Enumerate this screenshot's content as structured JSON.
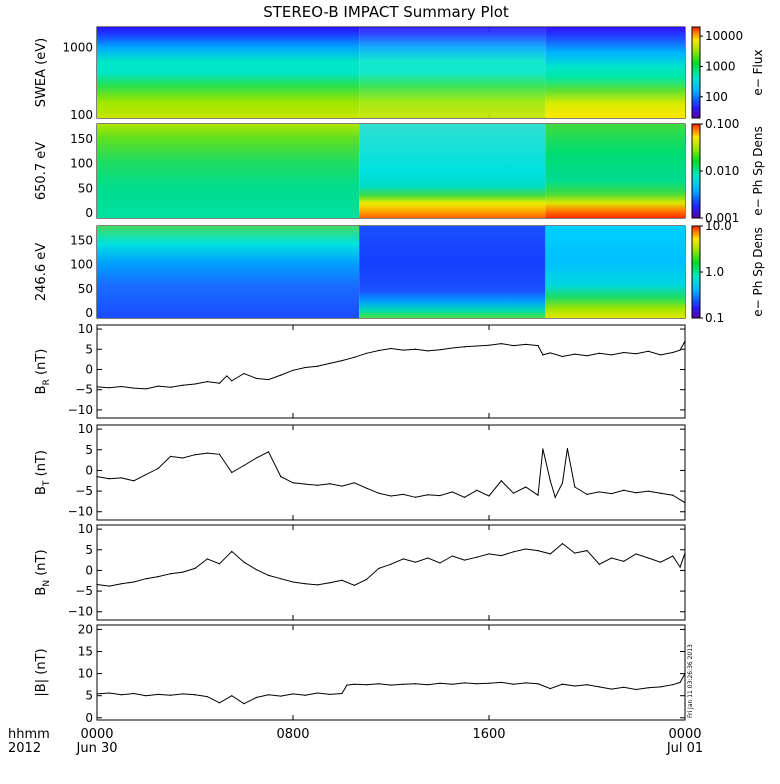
{
  "title": "STEREO-B IMPACT Summary Plot",
  "chart_data": [
    {
      "id": "swea",
      "type": "heatmap",
      "ylabel": "SWEA (eV)",
      "y_scale": "log",
      "ylim": [
        90,
        2000
      ],
      "yticks": [
        {
          "v": 1000,
          "label": "1000"
        },
        {
          "v": 100,
          "label": "100"
        }
      ],
      "colorbar_label": "e− Flux",
      "colorbar_scale": "log",
      "colorbar_range": [
        20,
        20000
      ],
      "colorbar_ticks": [
        {
          "v": 10000,
          "label": "10000"
        },
        {
          "v": 1000,
          "label": "1000"
        },
        {
          "v": 100,
          "label": "100"
        }
      ]
    },
    {
      "id": "pad650",
      "type": "heatmap",
      "ylabel": "650.7 eV",
      "ylim": [
        -10,
        180
      ],
      "yticks": [
        {
          "v": 150,
          "label": "150"
        },
        {
          "v": 100,
          "label": "100"
        },
        {
          "v": 50,
          "label": "50"
        },
        {
          "v": 0,
          "label": "0"
        }
      ],
      "colorbar_label": "e− Ph Sp Dens",
      "colorbar_scale": "log",
      "colorbar_range": [
        0.001,
        0.1
      ],
      "colorbar_ticks": [
        {
          "v": 0.1,
          "label": "0.100"
        },
        {
          "v": 0.01,
          "label": "0.010"
        },
        {
          "v": 0.001,
          "label": "0.001"
        }
      ]
    },
    {
      "id": "pad246",
      "type": "heatmap",
      "ylabel": "246.6 eV",
      "ylim": [
        -10,
        180
      ],
      "yticks": [
        {
          "v": 150,
          "label": "150"
        },
        {
          "v": 100,
          "label": "100"
        },
        {
          "v": 50,
          "label": "50"
        },
        {
          "v": 0,
          "label": "0"
        }
      ],
      "colorbar_label": "e− Ph Sp Dens",
      "colorbar_scale": "log",
      "colorbar_range": [
        0.1,
        10
      ],
      "colorbar_ticks": [
        {
          "v": 10,
          "label": "10.0"
        },
        {
          "v": 1,
          "label": "1.0"
        },
        {
          "v": 0.1,
          "label": "0.1"
        }
      ]
    },
    {
      "id": "br",
      "type": "line",
      "ylabel_main": "B",
      "ylabel_sub": "R",
      "ylabel_unit": "(nT)",
      "ylim": [
        -12,
        11
      ],
      "yticks": [
        {
          "v": 10,
          "label": "10"
        },
        {
          "v": 5,
          "label": "5"
        },
        {
          "v": 0,
          "label": "0"
        },
        {
          "v": -5,
          "label": "−5"
        },
        {
          "v": -10,
          "label": "−10"
        }
      ],
      "x": [
        0,
        0.5,
        1,
        1.5,
        2,
        2.5,
        3,
        3.5,
        4,
        4.5,
        5,
        5.3,
        5.5,
        6,
        6.5,
        7,
        7.5,
        8,
        8.5,
        9,
        9.5,
        10,
        10.5,
        11,
        11.5,
        12,
        12.5,
        13,
        13.5,
        14,
        14.5,
        15,
        15.5,
        16,
        16.5,
        17,
        17.5,
        18,
        18.2,
        18.5,
        19,
        19.5,
        20,
        20.5,
        21,
        21.5,
        22,
        22.5,
        23,
        23.5,
        23.8,
        24
      ],
      "values": [
        -4.3,
        -4.5,
        -4.2,
        -4.6,
        -4.8,
        -4.1,
        -4.4,
        -3.9,
        -3.6,
        -3.0,
        -3.4,
        -1.6,
        -2.8,
        -1.0,
        -2.2,
        -2.5,
        -1.4,
        -0.2,
        0.5,
        0.8,
        1.5,
        2.2,
        3.0,
        4.0,
        4.7,
        5.2,
        4.8,
        5.0,
        4.6,
        4.9,
        5.3,
        5.6,
        5.8,
        6.0,
        6.4,
        5.9,
        6.2,
        5.9,
        3.6,
        4.1,
        3.2,
        3.8,
        3.4,
        4.0,
        3.6,
        4.2,
        3.9,
        4.5,
        3.6,
        4.2,
        4.8,
        7.0
      ]
    },
    {
      "id": "bt",
      "type": "line",
      "ylabel_main": "B",
      "ylabel_sub": "T",
      "ylabel_unit": "(nT)",
      "ylim": [
        -12,
        11
      ],
      "yticks": [
        {
          "v": 10,
          "label": "10"
        },
        {
          "v": 5,
          "label": "5"
        },
        {
          "v": 0,
          "label": "0"
        },
        {
          "v": -5,
          "label": "−5"
        },
        {
          "v": -10,
          "label": "−10"
        }
      ],
      "x": [
        0,
        0.5,
        1,
        1.5,
        2,
        2.5,
        3,
        3.5,
        4,
        4.5,
        5,
        5.5,
        6,
        6.5,
        7,
        7.5,
        8,
        8.5,
        9,
        9.5,
        10,
        10.5,
        11,
        11.5,
        12,
        12.5,
        13,
        13.5,
        14,
        14.5,
        15,
        15.5,
        16,
        16.5,
        17,
        17.5,
        18,
        18.2,
        18.5,
        18.7,
        19,
        19.2,
        19.5,
        20,
        20.5,
        21,
        21.5,
        22,
        22.5,
        23,
        23.5,
        24
      ],
      "values": [
        -1.5,
        -2.0,
        -1.8,
        -2.5,
        -1.0,
        0.5,
        3.4,
        3.0,
        3.8,
        4.2,
        3.9,
        -0.5,
        1.2,
        3.0,
        4.5,
        -1.5,
        -3.0,
        -3.3,
        -3.6,
        -3.2,
        -3.8,
        -3.0,
        -4.3,
        -5.5,
        -6.2,
        -5.8,
        -6.5,
        -5.9,
        -6.1,
        -5.2,
        -6.5,
        -4.8,
        -6.2,
        -2.5,
        -5.5,
        -4.0,
        -6.0,
        5.2,
        -2.5,
        -6.5,
        -3.0,
        5.3,
        -4.0,
        -5.8,
        -5.2,
        -5.6,
        -4.8,
        -5.4,
        -5.0,
        -5.5,
        -6.0,
        -7.8
      ]
    },
    {
      "id": "bn",
      "type": "line",
      "ylabel_main": "B",
      "ylabel_sub": "N",
      "ylabel_unit": "(nT)",
      "ylim": [
        -12,
        11
      ],
      "yticks": [
        {
          "v": 10,
          "label": "10"
        },
        {
          "v": 5,
          "label": "5"
        },
        {
          "v": 0,
          "label": "0"
        },
        {
          "v": -5,
          "label": "−5"
        },
        {
          "v": -10,
          "label": "−10"
        }
      ],
      "x": [
        0,
        0.5,
        1,
        1.5,
        2,
        2.5,
        3,
        3.5,
        4,
        4.5,
        5,
        5.5,
        6,
        6.5,
        7,
        7.5,
        8,
        8.5,
        9,
        9.5,
        10,
        10.5,
        11,
        11.5,
        12,
        12.5,
        13,
        13.5,
        14,
        14.5,
        15,
        15.5,
        16,
        16.5,
        17,
        17.5,
        18,
        18.5,
        19,
        19.5,
        20,
        20.5,
        21,
        21.5,
        22,
        22.5,
        23,
        23.5,
        23.8,
        24
      ],
      "values": [
        -3.4,
        -3.8,
        -3.2,
        -2.8,
        -2.0,
        -1.5,
        -0.8,
        -0.4,
        0.5,
        2.8,
        1.6,
        4.6,
        2.0,
        0.2,
        -1.2,
        -2.0,
        -2.8,
        -3.2,
        -3.5,
        -3.0,
        -2.4,
        -3.6,
        -2.2,
        0.5,
        1.5,
        2.8,
        2.0,
        3.0,
        1.8,
        3.5,
        2.5,
        3.2,
        4.0,
        3.6,
        4.5,
        5.2,
        4.8,
        4.0,
        6.5,
        4.2,
        4.8,
        1.5,
        3.0,
        2.2,
        4.0,
        3.0,
        2.0,
        3.5,
        0.8,
        4.2
      ]
    },
    {
      "id": "bmag",
      "type": "line",
      "ylabel_main": "|B|",
      "ylabel_unit": "(nT)",
      "ylim": [
        -0.5,
        21
      ],
      "yticks": [
        {
          "v": 20,
          "label": "20"
        },
        {
          "v": 15,
          "label": "15"
        },
        {
          "v": 10,
          "label": "10"
        },
        {
          "v": 5,
          "label": "5"
        },
        {
          "v": 0,
          "label": "0"
        }
      ],
      "x": [
        0,
        0.5,
        1,
        1.5,
        2,
        2.5,
        3,
        3.5,
        4,
        4.5,
        5,
        5.5,
        6,
        6.5,
        7,
        7.5,
        8,
        8.5,
        9,
        9.5,
        10,
        10.2,
        10.5,
        11,
        11.5,
        12,
        12.5,
        13,
        13.5,
        14,
        14.5,
        15,
        15.5,
        16,
        16.5,
        17,
        17.5,
        18,
        18.5,
        19,
        19.5,
        20,
        20.5,
        21,
        21.5,
        22,
        22.5,
        23,
        23.5,
        23.8,
        24
      ],
      "values": [
        5.4,
        5.6,
        5.2,
        5.5,
        5.0,
        5.3,
        5.1,
        5.4,
        5.2,
        4.8,
        3.4,
        5.0,
        3.2,
        4.6,
        5.2,
        4.9,
        5.4,
        5.1,
        5.6,
        5.3,
        5.5,
        7.4,
        7.6,
        7.5,
        7.7,
        7.4,
        7.6,
        7.7,
        7.5,
        7.8,
        7.6,
        7.9,
        7.7,
        7.8,
        8.0,
        7.6,
        7.9,
        7.7,
        6.6,
        7.6,
        7.2,
        7.5,
        7.0,
        6.5,
        6.9,
        6.4,
        6.8,
        7.0,
        7.5,
        8.0,
        10.0
      ]
    }
  ],
  "x_axis": {
    "ticks": [
      {
        "v": 0,
        "line1": "0000",
        "line2": "Jun 30"
      },
      {
        "v": 8,
        "line1": "0800",
        "line2": ""
      },
      {
        "v": 16,
        "line1": "1600",
        "line2": ""
      },
      {
        "v": 24,
        "line1": "0000",
        "line2": "Jul 01"
      }
    ],
    "label_line1": "hhmm",
    "label_line2": "2012"
  },
  "timestamp": "Fri Jan 11 03:26:36 2013"
}
